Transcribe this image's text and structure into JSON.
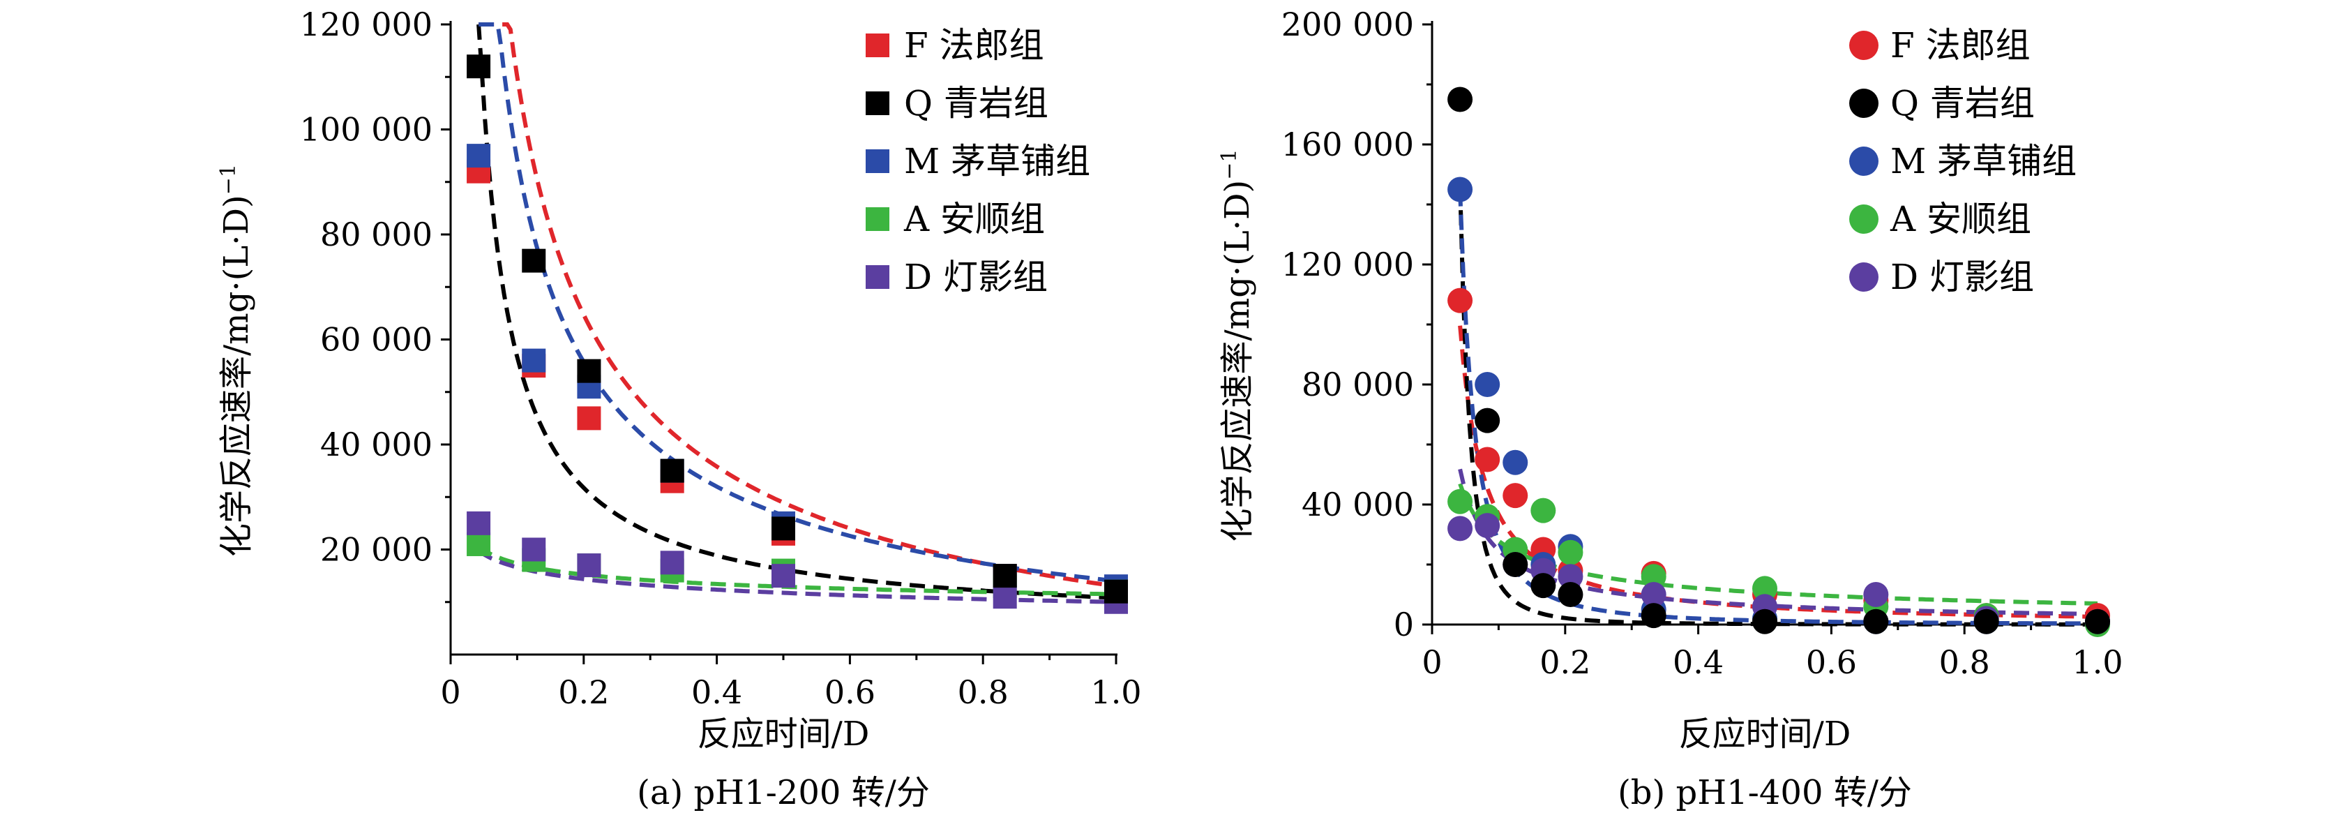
{
  "colors": {
    "F": "#e0262b",
    "Q": "#000000",
    "M": "#2b4ba8",
    "A": "#3cb540",
    "D": "#5b3ea0"
  },
  "chart_data": [
    {
      "type": "scatter",
      "marker": "square",
      "caption": "(a) pH1-200 转/分",
      "xlabel": "反应时间/D",
      "ylabel": "化学反应速率/mg·(L·D)",
      "ylabel_sup": "−1",
      "xlim": [
        0,
        1.0
      ],
      "ylim": [
        0,
        120000
      ],
      "xticks": [
        0,
        0.2,
        0.4,
        0.6,
        0.8,
        1.0
      ],
      "xtick_labels": [
        "0",
        "0.2",
        "0.4",
        "0.6",
        "0.8",
        "1.0"
      ],
      "yticks": [
        20000,
        40000,
        60000,
        80000,
        100000,
        120000
      ],
      "ytick_labels": [
        "20 000",
        "40 000",
        "60 000",
        "80 000",
        "100 000",
        "120 000"
      ],
      "legend_position": "top-right",
      "series": [
        {
          "key": "F",
          "name": "F 法郎组",
          "x": [
            0.042,
            0.125,
            0.208,
            0.333,
            0.5,
            0.833,
            1.0
          ],
          "y": [
            92000,
            55000,
            45000,
            33000,
            23000,
            15000,
            12000
          ],
          "fit": {
            "a": 28000,
            "b": -0.65,
            "c": -15000
          }
        },
        {
          "key": "Q",
          "name": "Q 青岩组",
          "x": [
            0.042,
            0.125,
            0.208,
            0.333,
            0.5,
            0.833,
            1.0
          ],
          "y": [
            112000,
            75000,
            54000,
            35000,
            24000,
            15000,
            12000
          ],
          "fit": {
            "a": 5800,
            "b": -0.95,
            "c": 5000
          }
        },
        {
          "key": "M",
          "name": "M 茅草铺组",
          "x": [
            0.042,
            0.125,
            0.208,
            0.333,
            0.5,
            0.833,
            1.0
          ],
          "y": [
            95000,
            56000,
            51000,
            35000,
            25000,
            15000,
            13000
          ],
          "fit": {
            "a": 20000,
            "b": -0.7,
            "c": -6000
          }
        },
        {
          "key": "A",
          "name": "A 安顺组",
          "x": [
            0.042,
            0.125,
            0.208,
            0.333,
            0.5,
            0.833,
            1.0
          ],
          "y": [
            21000,
            18000,
            17000,
            16000,
            16000,
            13000,
            12000
          ],
          "fit": {
            "a": 7500,
            "b": -0.25,
            "c": 4000
          }
        },
        {
          "key": "D",
          "name": "D 灯影组",
          "x": [
            0.042,
            0.125,
            0.208,
            0.333,
            0.5,
            0.833,
            1.0
          ],
          "y": [
            25000,
            20000,
            17000,
            17500,
            15000,
            11000,
            10000
          ],
          "fit": {
            "a": 16000,
            "b": -0.15,
            "c": -6000
          }
        }
      ]
    },
    {
      "type": "scatter",
      "marker": "circle",
      "caption": "(b) pH1-400 转/分",
      "xlabel": "反应时间/D",
      "ylabel": "化学反应速率/mg·(L·D)",
      "ylabel_sup": "−1",
      "xlim": [
        0,
        1.0
      ],
      "ylim": [
        0,
        200000
      ],
      "xticks": [
        0,
        0.2,
        0.4,
        0.6,
        0.8,
        1.0
      ],
      "xtick_labels": [
        "0",
        "0.2",
        "0.4",
        "0.6",
        "0.8",
        "1.0"
      ],
      "yticks": [
        0,
        40000,
        80000,
        120000,
        160000,
        200000
      ],
      "ytick_labels": [
        "0",
        "40 000",
        "80 000",
        "120 000",
        "160 000",
        "200 000"
      ],
      "legend_position": "top-right",
      "series": [
        {
          "key": "F",
          "name": "F 法郎组",
          "x": [
            0.042,
            0.083,
            0.125,
            0.167,
            0.208,
            0.333,
            0.5,
            0.667,
            0.833,
            1.0
          ],
          "y": [
            108000,
            55000,
            43000,
            25000,
            18000,
            17000,
            10000,
            8000,
            3000,
            3000
          ],
          "fit": {
            "a": 2600,
            "b": -1.15,
            "c": 0
          }
        },
        {
          "key": "Q",
          "name": "Q 青岩组",
          "x": [
            0.042,
            0.083,
            0.125,
            0.167,
            0.208,
            0.333,
            0.5,
            0.667,
            0.833,
            1.0
          ],
          "y": [
            175000,
            68000,
            20000,
            13000,
            10000,
            3000,
            1000,
            1000,
            1000,
            1000
          ],
          "fit": {
            "a": 28,
            "b": -2.7,
            "c": 0
          }
        },
        {
          "key": "M",
          "name": "M 茅草铺组",
          "x": [
            0.042,
            0.083,
            0.125,
            0.167,
            0.208,
            0.333,
            0.5,
            0.667,
            0.833,
            1.0
          ],
          "y": [
            145000,
            80000,
            54000,
            20000,
            26000,
            5000,
            2000,
            1000,
            1000,
            1000
          ],
          "fit": {
            "a": 350,
            "b": -1.9,
            "c": 0
          }
        },
        {
          "key": "A",
          "name": "A 安顺组",
          "x": [
            0.042,
            0.083,
            0.125,
            0.167,
            0.208,
            0.333,
            0.5,
            0.667,
            0.833,
            1.0
          ],
          "y": [
            41000,
            36000,
            25000,
            38000,
            24000,
            16000,
            12000,
            6000,
            3000,
            0
          ],
          "fit": {
            "a": 7000,
            "b": -0.6,
            "c": 0
          }
        },
        {
          "key": "D",
          "name": "D 灯影组",
          "x": [
            0.042,
            0.083,
            0.125,
            0.167,
            0.208,
            0.333,
            0.5,
            0.667,
            0.833,
            1.0
          ],
          "y": [
            32000,
            33000,
            20000,
            18000,
            16000,
            10000,
            6000,
            10000,
            2000,
            1000
          ],
          "fit": {
            "a": 3500,
            "b": -0.85,
            "c": 0
          }
        }
      ]
    }
  ]
}
